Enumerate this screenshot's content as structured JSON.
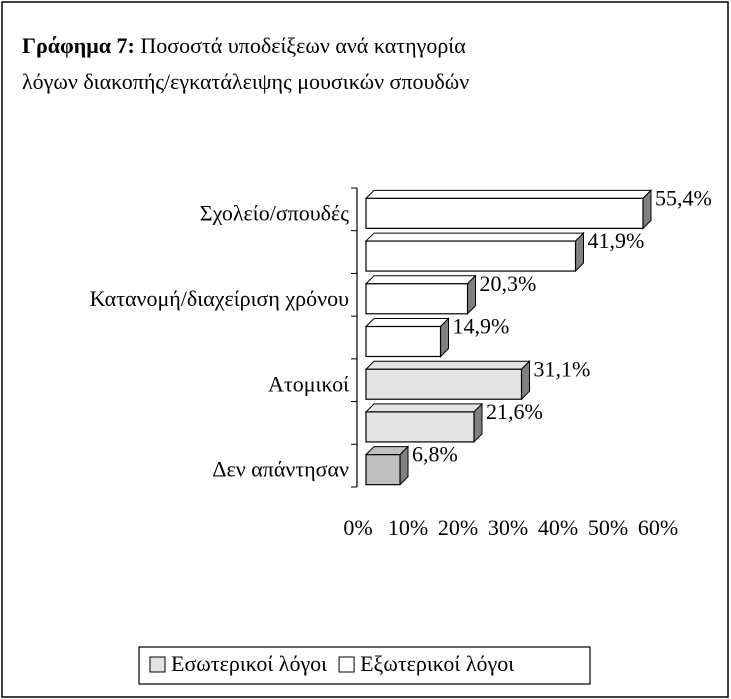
{
  "chart_data": {
    "type": "bar3d_horizontal",
    "figure_label": "Γράφημα 7:",
    "title": "Ποσοστά υποδείξεων ανά κατηγορία",
    "title_line2": "λόγων διακοπής/εγκατάλειψης μουσικών σπουδών",
    "categories": [
      "Σχολείο/σπουδές",
      null,
      "Κατανομή/διαχείριση χρόνου",
      null,
      "Ατομικοί",
      null,
      "Δεν απάντησαν"
    ],
    "values": [
      55.4,
      41.9,
      20.3,
      14.9,
      31.1,
      21.6,
      6.8
    ],
    "value_labels": [
      "55,4%",
      "41,9%",
      "20,3%",
      "14,9%",
      "31,1%",
      "21,6%",
      "6,8%"
    ],
    "colors": [
      "#ffffff",
      "#ffffff",
      "#ffffff",
      "#ffffff",
      "#e4e4e4",
      "#e4e4e4",
      "#bfbfbf"
    ],
    "xlim": [
      0,
      60
    ],
    "xticks": [
      {
        "value": 0,
        "label": "0%"
      },
      {
        "value": 10,
        "label": "10%"
      },
      {
        "value": 20,
        "label": "20%"
      },
      {
        "value": 30,
        "label": "30%"
      },
      {
        "value": 40,
        "label": "40%"
      },
      {
        "value": 50,
        "label": "50%"
      },
      {
        "value": 60,
        "label": "60%"
      }
    ],
    "legend": [
      {
        "name": "Εσωτερικοί λόγοι",
        "color": "#e4e4e4"
      },
      {
        "name": "Εξωτερικοί λόγοι",
        "color": "#ffffff"
      }
    ]
  }
}
